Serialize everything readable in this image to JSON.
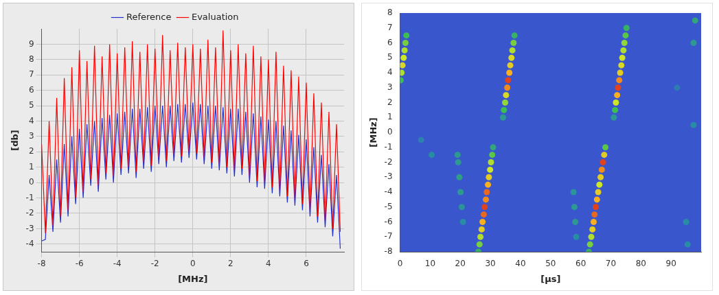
{
  "chart_data": [
    {
      "type": "line",
      "x_label": "[MHz]",
      "y_label": "[db]",
      "legend": "top",
      "grid": true,
      "xlim": [
        -8,
        8
      ],
      "xticks": [
        -8,
        -6,
        -4,
        -2,
        0,
        2,
        4,
        6
      ],
      "ylim": [
        -4.5,
        10
      ],
      "yticks": [
        -4,
        -3,
        -2,
        -1,
        0,
        1,
        2,
        3,
        4,
        5,
        6,
        7,
        8,
        9
      ],
      "x": [
        -8.0,
        -7.8,
        -7.6,
        -7.4,
        -7.2,
        -7.0,
        -6.8,
        -6.6,
        -6.4,
        -6.2,
        -6.0,
        -5.8,
        -5.6,
        -5.4,
        -5.2,
        -5.0,
        -4.8,
        -4.6,
        -4.4,
        -4.2,
        -4.0,
        -3.8,
        -3.6,
        -3.4,
        -3.2,
        -3.0,
        -2.8,
        -2.6,
        -2.4,
        -2.2,
        -2.0,
        -1.8,
        -1.6,
        -1.4,
        -1.2,
        -1.0,
        -0.8,
        -0.6,
        -0.4,
        -0.2,
        0.0,
        0.2,
        0.4,
        0.6,
        0.8,
        1.0,
        1.2,
        1.4,
        1.6,
        1.8,
        2.0,
        2.2,
        2.4,
        2.6,
        2.8,
        3.0,
        3.2,
        3.4,
        3.6,
        3.8,
        4.0,
        4.2,
        4.4,
        4.6,
        4.8,
        5.0,
        5.2,
        5.4,
        5.6,
        5.8,
        6.0,
        6.2,
        6.4,
        6.6,
        6.8,
        7.0,
        7.2,
        7.4,
        7.6,
        7.8
      ],
      "series": [
        {
          "name": "Reference",
          "color": "#1f2fd0",
          "values": [
            -3.8,
            -3.7,
            0.5,
            -3.2,
            1.5,
            -2.6,
            2.5,
            -2.2,
            3.0,
            -1.4,
            3.5,
            -1.0,
            3.8,
            -0.2,
            4.0,
            -0.6,
            4.2,
            0.2,
            4.4,
            0.0,
            4.5,
            0.5,
            4.6,
            0.6,
            4.8,
            0.3,
            4.8,
            0.9,
            4.9,
            0.7,
            5.0,
            1.2,
            5.0,
            1.0,
            5.0,
            1.4,
            5.1,
            1.3,
            5.1,
            1.6,
            5.2,
            1.5,
            5.1,
            1.2,
            5.0,
            0.9,
            5.0,
            0.8,
            4.9,
            0.6,
            4.8,
            0.4,
            4.8,
            0.5,
            4.6,
            0.0,
            4.5,
            -0.3,
            4.3,
            -0.4,
            4.1,
            -0.7,
            4.0,
            -0.9,
            3.7,
            -1.3,
            3.4,
            -1.5,
            3.1,
            -1.8,
            2.8,
            -2.2,
            2.3,
            -2.6,
            1.8,
            -2.9,
            1.2,
            -3.5,
            0.5,
            -4.3
          ]
        },
        {
          "name": "Evaluation",
          "color": "#ff0000",
          "values": [
            2.5,
            -3.3,
            4.0,
            -2.8,
            5.5,
            -2.2,
            6.8,
            -1.8,
            7.5,
            -1.0,
            8.6,
            -0.6,
            7.9,
            0.2,
            8.9,
            -0.2,
            8.2,
            0.6,
            9.0,
            0.4,
            8.4,
            0.9,
            8.8,
            1.0,
            9.2,
            0.7,
            8.5,
            1.3,
            9.0,
            1.1,
            8.7,
            1.6,
            9.6,
            1.4,
            8.6,
            1.8,
            9.1,
            1.7,
            8.8,
            2.0,
            9.0,
            1.9,
            8.7,
            1.6,
            9.3,
            1.3,
            8.8,
            1.2,
            9.9,
            1.0,
            8.6,
            0.8,
            9.0,
            0.9,
            8.4,
            0.4,
            8.9,
            0.1,
            8.2,
            0.0,
            8.0,
            -0.3,
            8.5,
            -0.5,
            7.6,
            -0.9,
            7.3,
            -1.1,
            6.9,
            -1.4,
            6.5,
            -1.8,
            5.8,
            -2.2,
            5.2,
            -2.5,
            4.6,
            -3.0,
            3.8,
            -3.2
          ]
        }
      ]
    },
    {
      "type": "heatmap",
      "x_label": "[µs]",
      "y_label": "[MHz]",
      "grid": false,
      "xlim": [
        0,
        100
      ],
      "xticks": [
        0,
        10,
        20,
        30,
        40,
        50,
        60,
        70,
        80,
        90
      ],
      "ylim": [
        -8,
        8
      ],
      "yticks": [
        -8,
        -7,
        -6,
        -5,
        -4,
        -3,
        -2,
        -1,
        0,
        1,
        2,
        3,
        4,
        5,
        6,
        7,
        8
      ],
      "zlim": [
        0,
        1
      ],
      "cells": [
        [
          26.0,
          -8.0,
          0.3
        ],
        [
          26.4,
          -7.5,
          0.45
        ],
        [
          26.7,
          -7.0,
          0.55
        ],
        [
          27.1,
          -6.5,
          0.7
        ],
        [
          27.4,
          -6.0,
          0.8
        ],
        [
          27.8,
          -5.5,
          0.9
        ],
        [
          28.1,
          -5.0,
          0.95
        ],
        [
          28.5,
          -4.5,
          0.85
        ],
        [
          28.8,
          -4.0,
          0.9
        ],
        [
          29.2,
          -3.5,
          0.8
        ],
        [
          29.5,
          -3.0,
          0.7
        ],
        [
          29.9,
          -2.5,
          0.6
        ],
        [
          30.2,
          -2.0,
          0.55
        ],
        [
          30.6,
          -1.5,
          0.4
        ],
        [
          30.9,
          -1.0,
          0.25
        ],
        [
          34.2,
          1.0,
          0.2
        ],
        [
          34.5,
          1.5,
          0.35
        ],
        [
          34.9,
          2.0,
          0.5
        ],
        [
          35.2,
          2.5,
          0.65
        ],
        [
          35.6,
          3.0,
          0.85
        ],
        [
          35.9,
          3.5,
          0.95
        ],
        [
          36.3,
          4.0,
          0.8
        ],
        [
          36.6,
          4.5,
          0.7
        ],
        [
          37.0,
          5.0,
          0.65
        ],
        [
          37.3,
          5.5,
          0.55
        ],
        [
          37.7,
          6.0,
          0.45
        ],
        [
          38.0,
          6.5,
          0.3
        ],
        [
          62.7,
          -8.0,
          0.3
        ],
        [
          63.1,
          -7.5,
          0.45
        ],
        [
          63.5,
          -7.0,
          0.55
        ],
        [
          63.9,
          -6.5,
          0.7
        ],
        [
          64.3,
          -6.0,
          0.8
        ],
        [
          64.6,
          -5.5,
          0.9
        ],
        [
          65.0,
          -5.0,
          0.95
        ],
        [
          65.4,
          -4.5,
          0.8
        ],
        [
          65.8,
          -4.0,
          0.7
        ],
        [
          66.2,
          -3.5,
          0.6
        ],
        [
          66.6,
          -3.0,
          0.7
        ],
        [
          67.0,
          -2.5,
          0.85
        ],
        [
          67.4,
          -2.0,
          0.95
        ],
        [
          67.8,
          -1.5,
          0.7
        ],
        [
          68.2,
          -1.0,
          0.4
        ],
        [
          71.0,
          1.0,
          0.2
        ],
        [
          71.4,
          1.5,
          0.35
        ],
        [
          71.7,
          2.0,
          0.6
        ],
        [
          72.1,
          2.5,
          0.8
        ],
        [
          72.4,
          3.0,
          0.95
        ],
        [
          72.8,
          3.5,
          0.85
        ],
        [
          73.1,
          4.0,
          0.7
        ],
        [
          73.5,
          4.5,
          0.65
        ],
        [
          73.8,
          5.0,
          0.6
        ],
        [
          74.2,
          5.5,
          0.55
        ],
        [
          74.5,
          6.0,
          0.5
        ],
        [
          74.9,
          6.5,
          0.4
        ],
        [
          75.2,
          7.0,
          0.3
        ],
        [
          0.2,
          3.5,
          0.35
        ],
        [
          0.5,
          4.0,
          0.55
        ],
        [
          0.8,
          4.5,
          0.65
        ],
        [
          1.2,
          5.0,
          0.6
        ],
        [
          1.5,
          5.5,
          0.55
        ],
        [
          1.8,
          6.0,
          0.45
        ],
        [
          2.1,
          6.5,
          0.35
        ],
        [
          19.1,
          -1.5,
          0.2
        ],
        [
          19.3,
          -2.0,
          0.2
        ],
        [
          19.7,
          -3.0,
          0.22
        ],
        [
          20.1,
          -4.0,
          0.2
        ],
        [
          20.5,
          -5.0,
          0.18
        ],
        [
          20.9,
          -6.0,
          0.15
        ],
        [
          57.6,
          -4.0,
          0.18
        ],
        [
          57.9,
          -5.0,
          0.2
        ],
        [
          58.2,
          -6.0,
          0.2
        ],
        [
          58.5,
          -7.0,
          0.15
        ],
        [
          10.5,
          -1.5,
          0.15
        ],
        [
          7.0,
          -0.5,
          0.12
        ],
        [
          95.0,
          -6.0,
          0.15
        ],
        [
          95.5,
          -7.5,
          0.15
        ],
        [
          97.5,
          6.0,
          0.2
        ],
        [
          98.0,
          7.5,
          0.25
        ],
        [
          97.5,
          0.5,
          0.15
        ],
        [
          92.0,
          3.0,
          0.1
        ]
      ]
    }
  ]
}
